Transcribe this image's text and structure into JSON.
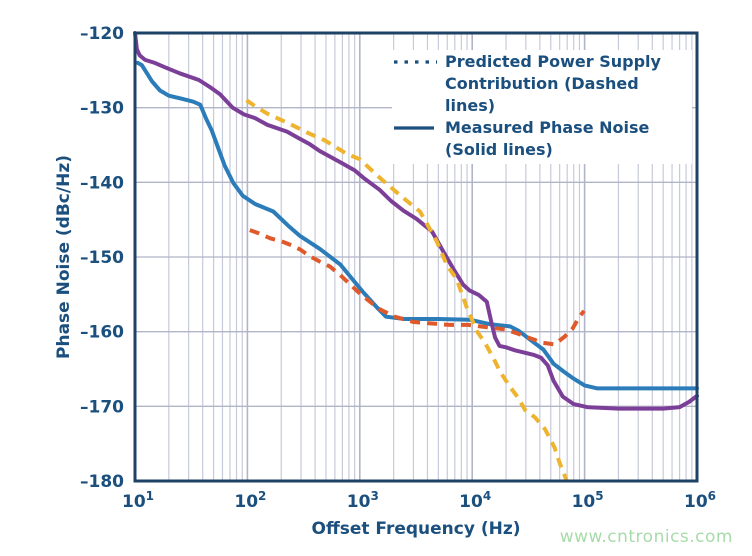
{
  "watermark": {
    "text": "www.cntronics.com",
    "color": "#a8dbaa"
  },
  "chart_data": {
    "type": "line",
    "title": "",
    "xlabel": "Offset Frequency (Hz)",
    "ylabel": "Phase Noise (dBc/Hz)",
    "x_scale": "log",
    "xlim": [
      10,
      1000000
    ],
    "ylim": [
      -180,
      -120
    ],
    "x_tick_base": "10",
    "x_tick_exponents": [
      1,
      2,
      3,
      4,
      5,
      6
    ],
    "y_ticks": [
      -120,
      -130,
      -140,
      -150,
      -160,
      -170,
      -180
    ],
    "y_tick_labels": [
      "–120",
      "–130",
      "–140",
      "–150",
      "–160",
      "–170",
      "–180"
    ],
    "grid": {
      "horizontal": "major only",
      "vertical": "log major + minor"
    },
    "axis_color": "#1e4265",
    "text_color": "#1b4f7e",
    "grid_minor_color": "#c7cad9",
    "grid_major_color": "#b1b5c9",
    "legend": {
      "position": "inside top-right",
      "entries": [
        {
          "label": "Predicted Power Supply Contribution (Dashed lines)",
          "style": "dashed"
        },
        {
          "label": "Measured Phase Noise (Solid lines)",
          "style": "solid"
        }
      ]
    },
    "series": [
      {
        "name": "measured-phase-noise-blue",
        "legend_group": "Measured Phase Noise (Solid lines)",
        "style": "solid",
        "color": "#2b7cb9",
        "points": [
          [
            10.6,
            -124
          ],
          [
            11.5,
            -124.3
          ],
          [
            12.3,
            -125
          ],
          [
            14.2,
            -126.5
          ],
          [
            16.7,
            -127.7
          ],
          [
            20,
            -128.4
          ],
          [
            26,
            -128.8
          ],
          [
            33,
            -129.2
          ],
          [
            38,
            -129.6
          ],
          [
            43,
            -131.5
          ],
          [
            48,
            -133
          ],
          [
            55,
            -135.4
          ],
          [
            63,
            -137.8
          ],
          [
            75,
            -140.1
          ],
          [
            91,
            -141.8
          ],
          [
            117,
            -142.9
          ],
          [
            170,
            -143.9
          ],
          [
            230,
            -145.8
          ],
          [
            295,
            -147.2
          ],
          [
            440,
            -148.9
          ],
          [
            670,
            -151
          ],
          [
            1070,
            -154.7
          ],
          [
            1450,
            -156.9
          ],
          [
            1710,
            -158
          ],
          [
            2500,
            -158.3
          ],
          [
            5000,
            -158.3
          ],
          [
            9500,
            -158.4
          ],
          [
            14400,
            -159
          ],
          [
            21700,
            -159.3
          ],
          [
            26000,
            -159.9
          ],
          [
            33000,
            -161.1
          ],
          [
            43000,
            -162.4
          ],
          [
            53000,
            -164.3
          ],
          [
            66000,
            -165.4
          ],
          [
            80000,
            -166.3
          ],
          [
            100000,
            -167.2
          ],
          [
            130000,
            -167.6
          ],
          [
            1000000,
            -167.6
          ]
        ]
      },
      {
        "name": "measured-phase-noise-purple",
        "legend_group": "Measured Phase Noise (Solid lines)",
        "style": "solid",
        "color": "#7c3f98",
        "points": [
          [
            10,
            -120
          ],
          [
            10.4,
            -122.2
          ],
          [
            11,
            -123
          ],
          [
            12.3,
            -123.6
          ],
          [
            15,
            -124
          ],
          [
            18.5,
            -124.6
          ],
          [
            25,
            -125.4
          ],
          [
            37,
            -126.3
          ],
          [
            46,
            -127.2
          ],
          [
            57,
            -128.2
          ],
          [
            74,
            -130
          ],
          [
            93,
            -130.9
          ],
          [
            117,
            -131.4
          ],
          [
            150,
            -132.3
          ],
          [
            225,
            -133.2
          ],
          [
            295,
            -134.2
          ],
          [
            360,
            -134.9
          ],
          [
            440,
            -135.8
          ],
          [
            670,
            -137.3
          ],
          [
            900,
            -138.4
          ],
          [
            1100,
            -139.5
          ],
          [
            1500,
            -141
          ],
          [
            1900,
            -142.5
          ],
          [
            2450,
            -143.8
          ],
          [
            3200,
            -144.9
          ],
          [
            4400,
            -146.6
          ],
          [
            5500,
            -149.2
          ],
          [
            6800,
            -151.6
          ],
          [
            8300,
            -153.7
          ],
          [
            9500,
            -154.5
          ],
          [
            11500,
            -155.1
          ],
          [
            13500,
            -156
          ],
          [
            14800,
            -158.7
          ],
          [
            16000,
            -160.8
          ],
          [
            17500,
            -161.9
          ],
          [
            20000,
            -162.1
          ],
          [
            24000,
            -162.5
          ],
          [
            29000,
            -162.8
          ],
          [
            35000,
            -163.1
          ],
          [
            41000,
            -163.5
          ],
          [
            47000,
            -164.5
          ],
          [
            53000,
            -166.6
          ],
          [
            64000,
            -168.7
          ],
          [
            80000,
            -169.7
          ],
          [
            105000,
            -170.1
          ],
          [
            200000,
            -170.3
          ],
          [
            500000,
            -170.3
          ],
          [
            700000,
            -170.1
          ],
          [
            850000,
            -169.4
          ],
          [
            1000000,
            -168.6
          ]
        ]
      },
      {
        "name": "predicted-supply-contribution-orange",
        "legend_group": "Predicted Power Supply Contribution (Dashed lines)",
        "style": "dashed",
        "color": "#e0592b",
        "points": [
          [
            105,
            -146.4
          ],
          [
            125,
            -146.8
          ],
          [
            160,
            -147.5
          ],
          [
            210,
            -148
          ],
          [
            245,
            -148.4
          ],
          [
            295,
            -149
          ],
          [
            360,
            -149.9
          ],
          [
            440,
            -150.6
          ],
          [
            545,
            -151.3
          ],
          [
            690,
            -152.6
          ],
          [
            970,
            -154.7
          ],
          [
            1460,
            -156.9
          ],
          [
            2050,
            -158
          ],
          [
            3000,
            -158.7
          ],
          [
            4400,
            -158.9
          ],
          [
            6300,
            -159.1
          ],
          [
            9200,
            -159.1
          ],
          [
            13400,
            -159.4
          ],
          [
            19600,
            -159.7
          ],
          [
            25800,
            -160.3
          ],
          [
            33000,
            -160.9
          ],
          [
            43000,
            -161.5
          ],
          [
            54000,
            -161.7
          ],
          [
            66000,
            -160.7
          ],
          [
            78000,
            -159.6
          ],
          [
            89000,
            -158.1
          ],
          [
            99000,
            -157.2
          ]
        ]
      },
      {
        "name": "predicted-supply-contribution-yellow",
        "legend_group": "Predicted Power Supply Contribution (Dashed lines)",
        "style": "dashed",
        "color": "#eeb430",
        "points": [
          [
            98,
            -129
          ],
          [
            117,
            -129.8
          ],
          [
            150,
            -130.8
          ],
          [
            225,
            -132
          ],
          [
            360,
            -133.5
          ],
          [
            490,
            -134.4
          ],
          [
            770,
            -136.2
          ],
          [
            1000,
            -136.9
          ],
          [
            1510,
            -139.4
          ],
          [
            2440,
            -142.1
          ],
          [
            3430,
            -143.9
          ],
          [
            4830,
            -147.9
          ],
          [
            5950,
            -151.1
          ],
          [
            7300,
            -153
          ],
          [
            9000,
            -156.9
          ],
          [
            11100,
            -160
          ],
          [
            13100,
            -161.6
          ],
          [
            15500,
            -163.6
          ],
          [
            17800,
            -165.4
          ],
          [
            21700,
            -167.4
          ],
          [
            25500,
            -168.8
          ],
          [
            29600,
            -170.5
          ],
          [
            36300,
            -171.5
          ],
          [
            44600,
            -173.1
          ],
          [
            54000,
            -175.5
          ],
          [
            60000,
            -177.6
          ],
          [
            69500,
            -180
          ]
        ]
      }
    ]
  }
}
